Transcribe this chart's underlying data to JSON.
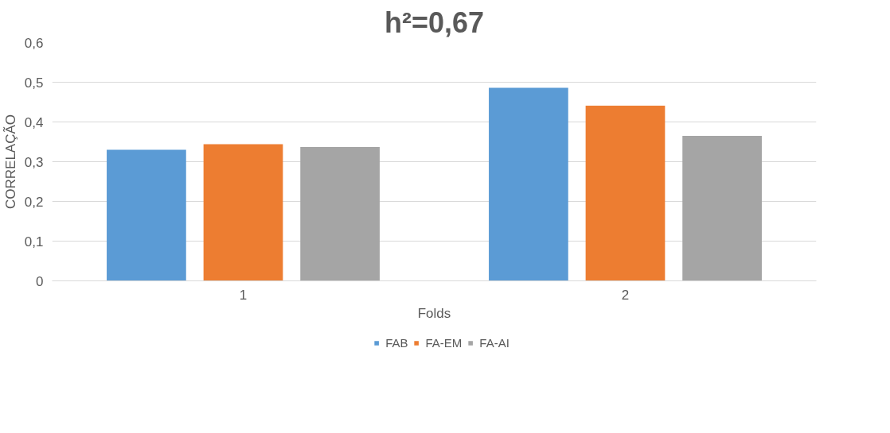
{
  "chart_data": {
    "type": "bar",
    "title": "h²=0,67",
    "xlabel": "Folds",
    "ylabel": "CORRELAÇÃO",
    "categories": [
      "1",
      "2"
    ],
    "series": [
      {
        "name": "FAB",
        "color": "#5b9bd5",
        "values": [
          0.33,
          0.486
        ]
      },
      {
        "name": "FA-EM",
        "color": "#ed7d31",
        "values": [
          0.344,
          0.441
        ]
      },
      {
        "name": "FA-AI",
        "color": "#a5a5a5",
        "values": [
          0.337,
          0.365
        ]
      }
    ],
    "ylim": [
      0,
      0.6
    ],
    "yticks": [
      0,
      {
        "value": 0.1,
        "label": "0,1"
      },
      {
        "value": 0.2,
        "label": "0,2"
      },
      {
        "value": 0.3,
        "label": "0,3"
      },
      {
        "value": 0.4,
        "label": "0,4"
      },
      {
        "value": 0.5,
        "label": "0,5"
      },
      {
        "value": 0.6,
        "label": "0,6"
      }
    ],
    "grid": "y",
    "legend": "bottom"
  }
}
